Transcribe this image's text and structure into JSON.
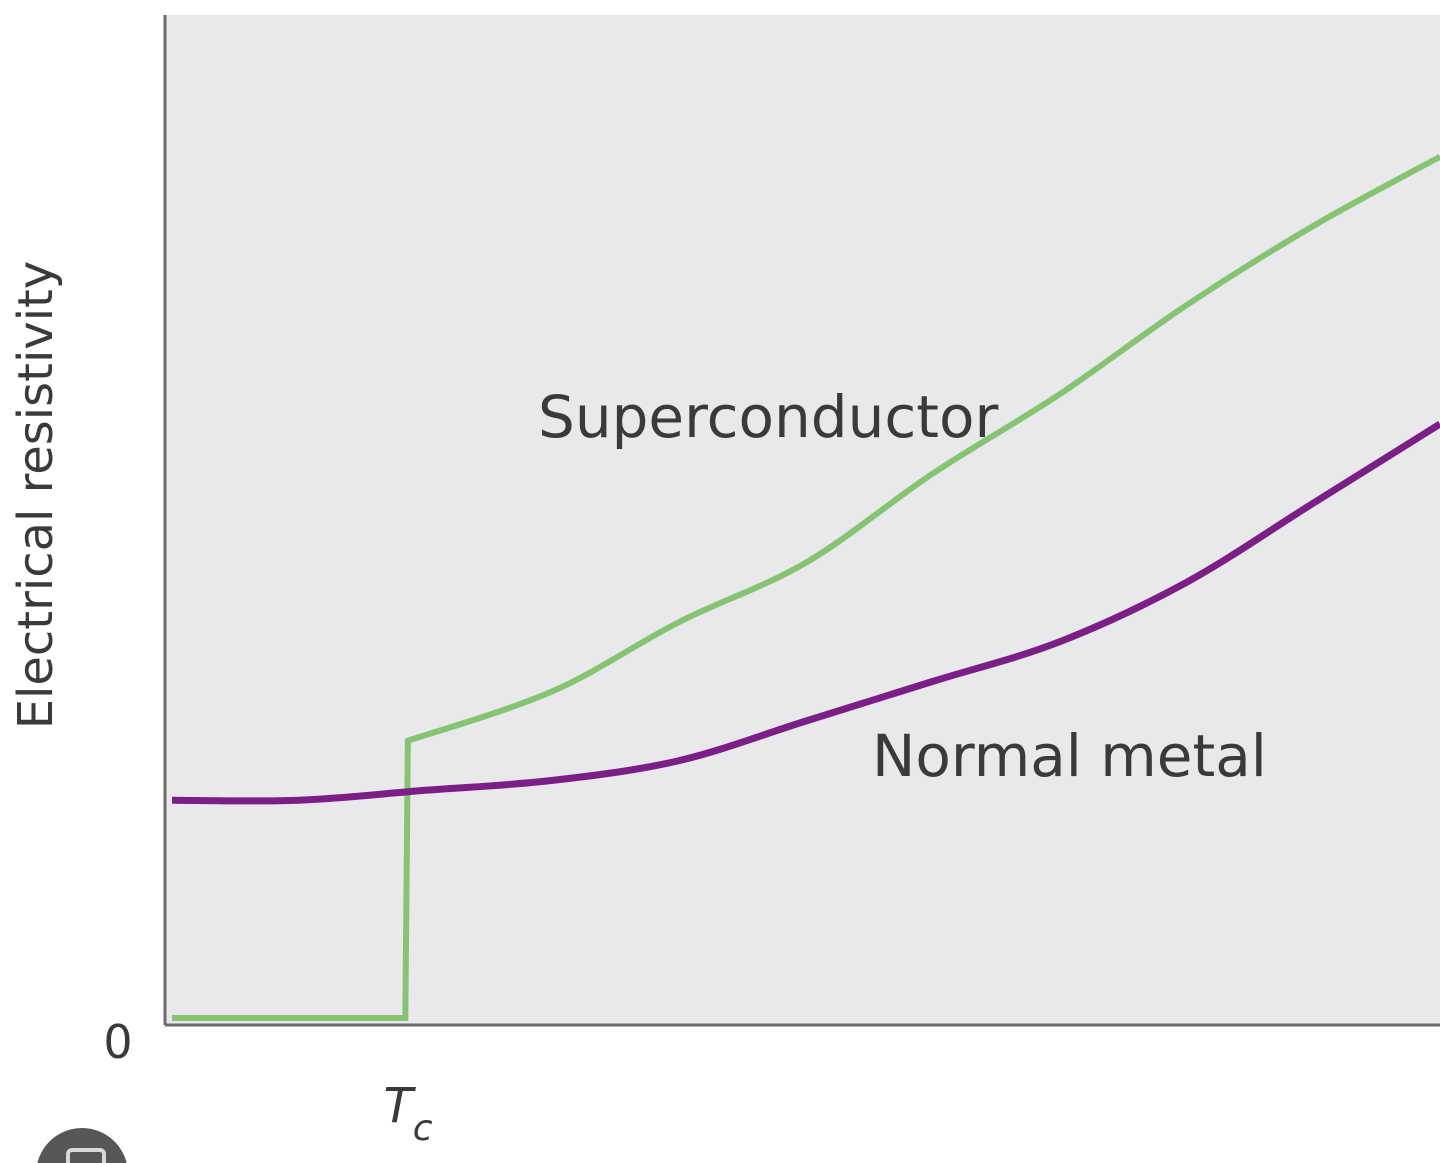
{
  "chart_data": {
    "type": "line",
    "ylabel": "Electrical resistivity",
    "xlabel": "",
    "x_tick_label": "T",
    "x_tick_label_subscript": "c",
    "y_tick_label": "0",
    "xlim": [
      0,
      1
    ],
    "ylim": [
      0,
      1
    ],
    "series": [
      {
        "name": "Superconductor",
        "color": "#86c474",
        "x": [
          0.0,
          0.184,
          0.184,
          0.186,
          0.3,
          0.4,
          0.5,
          0.6,
          0.7,
          0.8,
          0.9,
          1.0
        ],
        "y": [
          0.0,
          0.0,
          0.0,
          0.28,
          0.33,
          0.4,
          0.46,
          0.55,
          0.63,
          0.72,
          0.8,
          0.87
        ]
      },
      {
        "name": "Normal metal",
        "color": "#7b1f86",
        "x": [
          0.0,
          0.1,
          0.2,
          0.3,
          0.4,
          0.5,
          0.6,
          0.7,
          0.8,
          0.9,
          1.0
        ],
        "y": [
          0.22,
          0.22,
          0.23,
          0.24,
          0.26,
          0.3,
          0.34,
          0.38,
          0.44,
          0.52,
          0.6
        ]
      }
    ],
    "annotations": [
      "Superconductor",
      "Normal metal"
    ],
    "grid": false,
    "background": "#e9e9eb"
  }
}
